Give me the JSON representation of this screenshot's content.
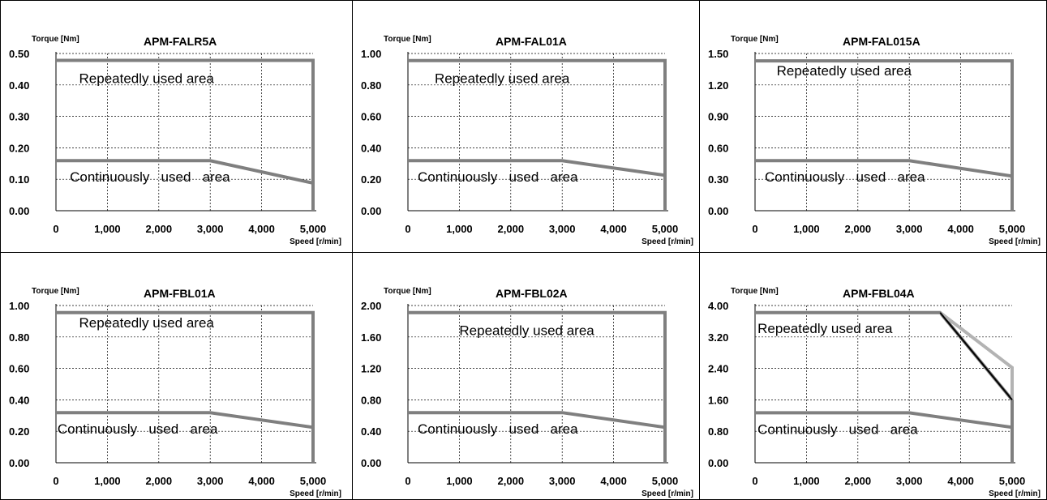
{
  "chart_data": [
    {
      "type": "line",
      "title": "APM-FALR5A",
      "ylabel": "Torque [Nm]",
      "xlabel": "Speed [r/min]",
      "x_ticks": [
        "0",
        "1,000",
        "2,000",
        "3,000",
        "4,000",
        "5,000"
      ],
      "y_ticks": [
        "0.00",
        "0.10",
        "0.20",
        "0.30",
        "0.40",
        "0.50"
      ],
      "xlim": [
        0,
        5000
      ],
      "ylim": [
        0,
        0.5
      ],
      "grid": true,
      "series": [
        {
          "role": "peak",
          "color": "#7f7f7f",
          "x": [
            0,
            5000,
            5000
          ],
          "y": [
            0.478,
            0.478,
            0
          ]
        },
        {
          "role": "rated",
          "color": "#7f7f7f",
          "x": [
            0,
            3000,
            5000,
            5000
          ],
          "y": [
            0.159,
            0.159,
            0.088,
            0
          ]
        }
      ],
      "annotations": [
        {
          "text": "Repeatedly used area",
          "x": 450,
          "y": 0.406
        },
        {
          "text": "Continuously   used   area",
          "x": 270,
          "y": 0.093
        }
      ]
    },
    {
      "type": "line",
      "title": "APM-FAL01A",
      "ylabel": "Torque [Nm]",
      "xlabel": "Speed [r/min]",
      "x_ticks": [
        "0",
        "1,000",
        "2,000",
        "3,000",
        "4,000",
        "5,000"
      ],
      "y_ticks": [
        "0.00",
        "0.20",
        "0.40",
        "0.60",
        "0.80",
        "1.00"
      ],
      "xlim": [
        0,
        5000
      ],
      "ylim": [
        0,
        1.0
      ],
      "grid": true,
      "series": [
        {
          "role": "peak",
          "color": "#7f7f7f",
          "x": [
            0,
            5000,
            5000
          ],
          "y": [
            0.955,
            0.955,
            0
          ]
        },
        {
          "role": "rated",
          "color": "#7f7f7f",
          "x": [
            0,
            3000,
            5000,
            5000
          ],
          "y": [
            0.318,
            0.318,
            0.225,
            0
          ]
        }
      ],
      "annotations": [
        {
          "text": "Repeatedly used area",
          "x": 520,
          "y": 0.812
        },
        {
          "text": "Continuously   used   area",
          "x": 190,
          "y": 0.186
        }
      ]
    },
    {
      "type": "line",
      "title": "APM-FAL015A",
      "ylabel": "Torque [Nm]",
      "xlabel": "Speed [r/min]",
      "x_ticks": [
        "0",
        "1,000",
        "2,000",
        "3,000",
        "4,000",
        "5,000"
      ],
      "y_ticks": [
        "0.00",
        "0.30",
        "0.60",
        "0.90",
        "1.20",
        "1.50"
      ],
      "xlim": [
        0,
        5000
      ],
      "ylim": [
        0,
        1.5
      ],
      "grid": true,
      "series": [
        {
          "role": "peak",
          "color": "#7f7f7f",
          "x": [
            0,
            5000,
            5000
          ],
          "y": [
            1.43,
            1.43,
            0
          ]
        },
        {
          "role": "rated",
          "color": "#7f7f7f",
          "x": [
            0,
            3000,
            5000,
            5000
          ],
          "y": [
            0.477,
            0.477,
            0.33,
            0
          ]
        }
      ],
      "annotations": [
        {
          "text": "Repeatedly used area",
          "x": 420,
          "y": 1.29
        },
        {
          "text": "Continuously   used   area",
          "x": 190,
          "y": 0.279
        }
      ]
    },
    {
      "type": "line",
      "title": "APM-FBL01A",
      "ylabel": "Torque [Nm]",
      "xlabel": "Speed [r/min]",
      "x_ticks": [
        "0",
        "1,000",
        "2,000",
        "3,000",
        "4,000",
        "5,000"
      ],
      "y_ticks": [
        "0.00",
        "0.20",
        "0.40",
        "0.60",
        "0.80",
        "1.00"
      ],
      "xlim": [
        0,
        5000
      ],
      "ylim": [
        0,
        1.0
      ],
      "grid": true,
      "series": [
        {
          "role": "peak",
          "color": "#7f7f7f",
          "x": [
            0,
            5000,
            5000
          ],
          "y": [
            0.955,
            0.955,
            0
          ]
        },
        {
          "role": "rated",
          "color": "#7f7f7f",
          "x": [
            0,
            3000,
            5000,
            5000
          ],
          "y": [
            0.318,
            0.318,
            0.225,
            0
          ]
        }
      ],
      "annotations": [
        {
          "text": "Repeatedly used area",
          "x": 450,
          "y": 0.86
        },
        {
          "text": "Continuously   used   area",
          "x": 30,
          "y": 0.186
        }
      ]
    },
    {
      "type": "line",
      "title": "APM-FBL02A",
      "ylabel": "Torque [Nm]",
      "xlabel": "Speed [r/min]",
      "x_ticks": [
        "0",
        "1,000",
        "2,000",
        "3,000",
        "4,000",
        "5,000"
      ],
      "y_ticks": [
        "0.00",
        "0.40",
        "0.80",
        "1.20",
        "1.60",
        "2.00"
      ],
      "xlim": [
        0,
        5000
      ],
      "ylim": [
        0,
        2.0
      ],
      "grid": true,
      "series": [
        {
          "role": "peak",
          "color": "#7f7f7f",
          "x": [
            0,
            5000,
            5000
          ],
          "y": [
            1.91,
            1.91,
            0
          ]
        },
        {
          "role": "rated",
          "color": "#7f7f7f",
          "x": [
            0,
            3000,
            5000,
            5000
          ],
          "y": [
            0.637,
            0.637,
            0.45,
            0
          ]
        }
      ],
      "annotations": [
        {
          "text": "Repeatedly used area",
          "x": 1000,
          "y": 1.625
        },
        {
          "text": "Continuously   used   area",
          "x": 190,
          "y": 0.372
        }
      ]
    },
    {
      "type": "line",
      "title": "APM-FBL04A",
      "ylabel": "Torque [Nm]",
      "xlabel": "Speed [r/min]",
      "x_ticks": [
        "0",
        "1,000",
        "2,000",
        "3,000",
        "4,000",
        "5,000"
      ],
      "y_ticks": [
        "0.00",
        "0.80",
        "1.60",
        "2.40",
        "3.20",
        "4.00"
      ],
      "xlim": [
        0,
        5000
      ],
      "ylim": [
        0,
        4.0
      ],
      "grid": true,
      "series": [
        {
          "role": "peak",
          "color": "#7f7f7f",
          "x": [
            0,
            3600,
            5000,
            5000
          ],
          "y": [
            3.82,
            3.82,
            1.6,
            0
          ]
        },
        {
          "role": "peak-alt",
          "color": "#b3b3b3",
          "x": [
            3600,
            5000,
            5000
          ],
          "y": [
            3.82,
            2.42,
            1.6
          ]
        },
        {
          "role": "peak-line",
          "color": "#000000",
          "x": [
            3600,
            5000
          ],
          "y": [
            3.82,
            1.6
          ]
        },
        {
          "role": "rated",
          "color": "#7f7f7f",
          "x": [
            0,
            3000,
            5000,
            5000
          ],
          "y": [
            1.27,
            1.27,
            0.9,
            0
          ]
        }
      ],
      "annotations": [
        {
          "text": "Repeatedly used area",
          "x": 50,
          "y": 3.3
        },
        {
          "text": "Continuously   used   area",
          "x": 50,
          "y": 0.73
        }
      ]
    }
  ]
}
